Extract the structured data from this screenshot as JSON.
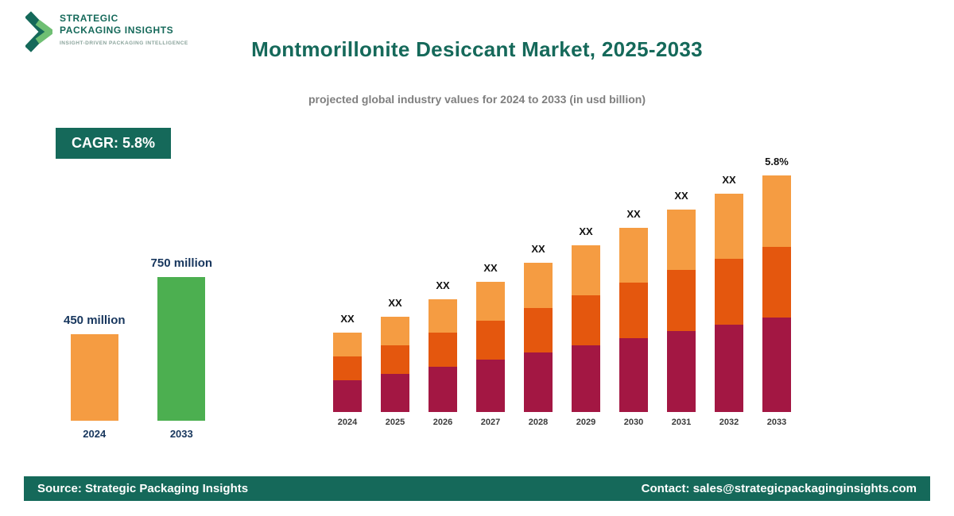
{
  "logo": {
    "name_line1": "STRATEGIC",
    "name_line2": "PACKAGING INSIGHTS",
    "tagline": "INSIGHT-DRIVEN PACKAGING INTELLIGENCE"
  },
  "header": {
    "title": "Montmorillonite Desiccant Market, 2025-2033",
    "subtitle": "projected global industry values for 2024 to 2033 (in usd billion)"
  },
  "badge": {
    "label": "CAGR: 5.8%"
  },
  "footer": {
    "source": "Source: Strategic Packaging Insights",
    "contact": "Contact: sales@strategicpackaginginsights.com"
  },
  "colors": {
    "teal": "#15695A",
    "light_orange": "#F59C42",
    "dark_orange": "#E4570E",
    "maroon": "#A31743",
    "green": "#4CAF50",
    "navy_label": "#17365D"
  },
  "chart_data": [
    {
      "id": "growth-summary",
      "type": "bar",
      "categories": [
        "2024",
        "2033"
      ],
      "values": [
        450,
        750
      ],
      "value_labels": [
        "450 million",
        "750 million"
      ],
      "bar_colors": [
        "#F59C42",
        "#4CAF50"
      ],
      "grid": false,
      "legend": false
    },
    {
      "id": "yearly-stacked",
      "type": "bar",
      "stacked": true,
      "categories": [
        "2024",
        "2025",
        "2026",
        "2027",
        "2028",
        "2029",
        "2030",
        "2031",
        "2032",
        "2033"
      ],
      "series": [
        {
          "name": "bottom-segment",
          "color": "#A31743",
          "values": [
            40,
            48,
            57,
            66,
            75,
            84,
            93,
            102,
            110,
            119
          ]
        },
        {
          "name": "middle-segment",
          "color": "#E4570E",
          "values": [
            30,
            36,
            43,
            49,
            56,
            63,
            70,
            77,
            83,
            89
          ]
        },
        {
          "name": "top-segment",
          "color": "#F59C42",
          "values": [
            30,
            36,
            42,
            49,
            57,
            63,
            69,
            76,
            82,
            90
          ]
        }
      ],
      "totals_relative": [
        100,
        120,
        142,
        164,
        188,
        210,
        232,
        255,
        275,
        298
      ],
      "bar_labels": [
        "XX",
        "XX",
        "XX",
        "XX",
        "XX",
        "XX",
        "XX",
        "XX",
        "XX",
        "5.8%"
      ],
      "grid": false,
      "legend": false
    }
  ]
}
